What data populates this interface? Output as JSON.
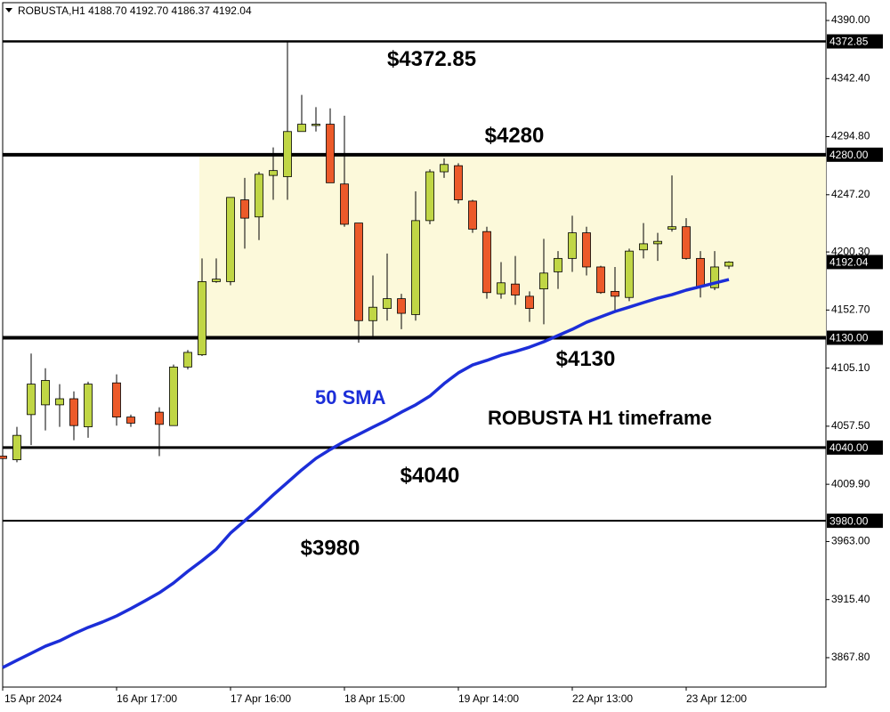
{
  "chart_data": {
    "type": "candlestick",
    "header": "ROBUSTA,H1  4188.70 4192.70 4186.37 4192.04",
    "categories": [
      "15 Apr 2024",
      null,
      null,
      null,
      null,
      null,
      null,
      null,
      "16 Apr 17:00",
      null,
      null,
      null,
      null,
      null,
      null,
      null,
      "17 Apr 16:00",
      null,
      null,
      null,
      null,
      null,
      null,
      null,
      "18 Apr 15:00",
      null,
      null,
      null,
      null,
      null,
      null,
      null,
      "19 Apr 14:00",
      null,
      null,
      null,
      null,
      null,
      null,
      null,
      "22 Apr 13:00",
      null,
      null,
      null,
      null,
      null,
      null,
      null,
      "23 Apr 12:00",
      null,
      null,
      null
    ],
    "open": [
      4033,
      4030,
      4067,
      4075,
      4075,
      4080,
      4057,
      null,
      4093,
      4065,
      null,
      4069,
      4058,
      4106,
      4116,
      4176,
      4176,
      4243,
      4229,
      4263,
      4262,
      4299,
      4304,
      4305,
      4256,
      4224,
      4144,
      4154,
      4162,
      4149,
      4226,
      4266,
      4271,
      4242,
      4217,
      4166,
      4174,
      4164,
      4170,
      4184,
      4195,
      4216,
      4188,
      4168,
      4163,
      4202,
      4207,
      4219,
      4221,
      4195,
      4171,
      4188.7
    ],
    "high": [
      4034,
      4057,
      4117,
      4105,
      4092,
      4086,
      4094,
      null,
      4100,
      4067,
      null,
      4073,
      4108,
      4120,
      4195,
      4195,
      4245,
      4261,
      4266,
      4286,
      4373,
      4329,
      4319,
      4318,
      4312,
      4224,
      4181,
      4199,
      4166,
      4250,
      4268,
      4277,
      4273,
      4243,
      4221,
      4192,
      4197,
      4168,
      4211,
      4201,
      4230,
      4221,
      4189,
      4188,
      4203,
      4224,
      4216,
      4263,
      4228,
      4201,
      4201,
      4192.7
    ],
    "low": [
      4022,
      4028,
      4042,
      4054,
      4057,
      4046,
      4048,
      null,
      4058,
      4057,
      null,
      4033,
      4058,
      4104,
      4115,
      4175,
      4173,
      4203,
      4210,
      4243,
      4243,
      4299,
      4299,
      4257,
      4221,
      4126,
      4131,
      4144,
      4137,
      4144,
      4223,
      4261,
      4240,
      4216,
      4162,
      4162,
      4157,
      4143,
      4141,
      4170,
      4184,
      4181,
      4166,
      4152,
      4160,
      4195,
      4193,
      4217,
      4194,
      4163,
      4169,
      4186.37
    ],
    "close": [
      4031,
      4050,
      4092,
      4095,
      4080,
      4058,
      4092,
      null,
      4065,
      4060,
      null,
      4059,
      4106,
      4118,
      4176,
      4178,
      4245,
      4228,
      4264,
      4267,
      4299,
      4305,
      4305,
      4257,
      4223,
      4144,
      4155,
      4162,
      4150,
      4226,
      4266,
      4272,
      4243,
      4219,
      4167,
      4175,
      4165,
      4154,
      4183,
      4195,
      4216,
      4188,
      4167,
      4164,
      4201,
      4207,
      4209,
      4221,
      4195,
      4172,
      4188,
      4192.04
    ],
    "up_color": "#c0d645",
    "down_color": "#ec5a2a",
    "sma": {
      "name": "50 SMA",
      "color": "#1c2ed8",
      "values": [
        3859.7,
        3865.6,
        3871.4,
        3877.2,
        3881.6,
        3887.4,
        3892.6,
        3897,
        3902,
        3908,
        3914.4,
        3921,
        3929,
        3938.5,
        3947.3,
        3956.7,
        3969.9,
        3980,
        3990.3,
        4001.2,
        4011.4,
        4021.7,
        4031.1,
        4038.4,
        4045,
        4050.8,
        4056.7,
        4062.5,
        4069,
        4075,
        4082.2,
        4092.4,
        4101.2,
        4107.7,
        4111.4,
        4115.7,
        4118.7,
        4122.3,
        4126.7,
        4131.8,
        4136.9,
        4142.7,
        4147.1,
        4151.5,
        4155.1,
        4158.8,
        4162.4,
        4165.3,
        4169,
        4171.9,
        4174.8,
        4177.7
      ]
    },
    "levels": [
      {
        "value": 4372.85,
        "label": "4372.85",
        "annotation": "$4372.85"
      },
      {
        "value": 4280,
        "label": "4280.00",
        "annotation": "$4280"
      },
      {
        "value": 4130,
        "label": "4130.00",
        "annotation": "$4130"
      },
      {
        "value": 4040,
        "label": "4040.00",
        "annotation": "$4040"
      },
      {
        "value": 3980,
        "label": "3980.00",
        "annotation": "$3980"
      }
    ],
    "zone": {
      "low": 4130,
      "high": 4280,
      "color": "#fcf9da"
    },
    "last_price": 4192.04,
    "timeframe_note": "ROBUSTA H1 timeframe",
    "ylim": [
      3843.7,
      4404.6
    ],
    "yticks": [
      {
        "value": 4390,
        "label": "4390.00"
      },
      {
        "value": 4342.4,
        "label": "4342.40"
      },
      {
        "value": 4294.8,
        "label": "4294.80"
      },
      {
        "value": 4247.2,
        "label": "4247.20"
      },
      {
        "value": 4200.3,
        "label": "4200.30"
      },
      {
        "value": 4152.7,
        "label": "4152.70"
      },
      {
        "value": 4105.1,
        "label": "4105.10"
      },
      {
        "value": 4057.5,
        "label": "4057.50"
      },
      {
        "value": 4009.9,
        "label": "4009.90"
      },
      {
        "value": 3963,
        "label": "3963.00"
      },
      {
        "value": 3915.4,
        "label": "3915.40"
      },
      {
        "value": 3867.8,
        "label": "3867.80"
      }
    ]
  }
}
